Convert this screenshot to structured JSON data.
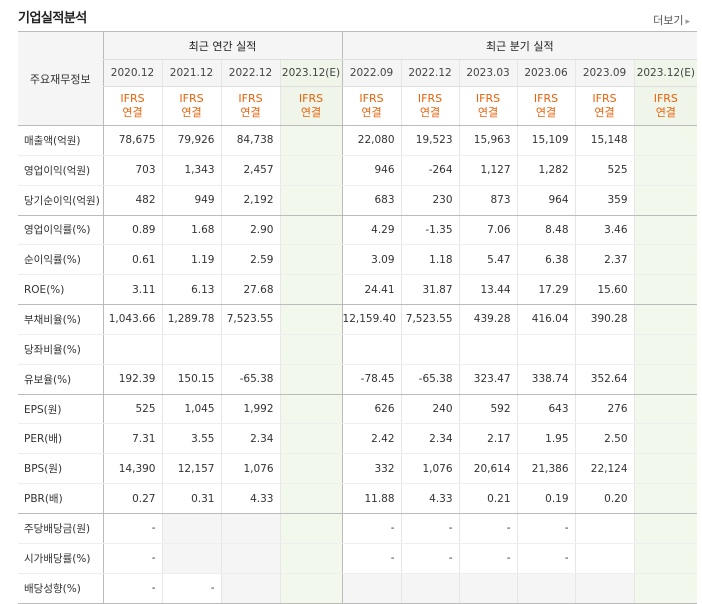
{
  "title": "기업실적분석",
  "more_label": "더보기",
  "header": {
    "corner_label": "주요재무정보",
    "annual_label": "최근 연간 실적",
    "quarter_label": "최근 분기 실적",
    "annual_periods": [
      "2020.12",
      "2021.12",
      "2022.12",
      "2023.12(E)"
    ],
    "quarter_periods": [
      "2022.09",
      "2022.12",
      "2023.03",
      "2023.06",
      "2023.09",
      "2023.12(E)"
    ],
    "basis_top": "IFRS",
    "basis_bottom": "연결"
  },
  "rows": [
    {
      "label": "매출액(억원)",
      "values": [
        "78,675",
        "79,926",
        "84,738",
        "",
        "22,080",
        "19,523",
        "15,963",
        "15,109",
        "15,148",
        ""
      ]
    },
    {
      "label": "영업이익(억원)",
      "values": [
        "703",
        "1,343",
        "2,457",
        "",
        "946",
        "-264",
        "1,127",
        "1,282",
        "525",
        ""
      ]
    },
    {
      "label": "당기순이익(억원)",
      "values": [
        "482",
        "949",
        "2,192",
        "",
        "683",
        "230",
        "873",
        "964",
        "359",
        ""
      ]
    },
    {
      "label": "영업이익률(%)",
      "values": [
        "0.89",
        "1.68",
        "2.90",
        "",
        "4.29",
        "-1.35",
        "7.06",
        "8.48",
        "3.46",
        ""
      ]
    },
    {
      "label": "순이익률(%)",
      "values": [
        "0.61",
        "1.19",
        "2.59",
        "",
        "3.09",
        "1.18",
        "5.47",
        "6.38",
        "2.37",
        ""
      ]
    },
    {
      "label": "ROE(%)",
      "values": [
        "3.11",
        "6.13",
        "27.68",
        "",
        "24.41",
        "31.87",
        "13.44",
        "17.29",
        "15.60",
        ""
      ]
    },
    {
      "label": "부채비율(%)",
      "values": [
        "1,043.66",
        "1,289.78",
        "7,523.55",
        "",
        "12,159.40",
        "7,523.55",
        "439.28",
        "416.04",
        "390.28",
        ""
      ]
    },
    {
      "label": "당좌비율(%)",
      "values": [
        "",
        "",
        "",
        "",
        "",
        "",
        "",
        "",
        "",
        ""
      ]
    },
    {
      "label": "유보율(%)",
      "values": [
        "192.39",
        "150.15",
        "-65.38",
        "",
        "-78.45",
        "-65.38",
        "323.47",
        "338.74",
        "352.64",
        ""
      ]
    },
    {
      "label": "EPS(원)",
      "values": [
        "525",
        "1,045",
        "1,992",
        "",
        "626",
        "240",
        "592",
        "643",
        "276",
        ""
      ]
    },
    {
      "label": "PER(배)",
      "values": [
        "7.31",
        "3.55",
        "2.34",
        "",
        "2.42",
        "2.34",
        "2.17",
        "1.95",
        "2.50",
        ""
      ]
    },
    {
      "label": "BPS(원)",
      "values": [
        "14,390",
        "12,157",
        "1,076",
        "",
        "332",
        "1,076",
        "20,614",
        "21,386",
        "22,124",
        ""
      ]
    },
    {
      "label": "PBR(배)",
      "values": [
        "0.27",
        "0.31",
        "4.33",
        "",
        "11.88",
        "4.33",
        "0.21",
        "0.19",
        "0.20",
        ""
      ]
    },
    {
      "label": "주당배당금(원)",
      "values": [
        "-",
        "",
        "",
        "",
        "-",
        "-",
        "-",
        "-",
        "",
        ""
      ]
    },
    {
      "label": "시가배당률(%)",
      "values": [
        "-",
        "",
        "",
        "",
        "-",
        "-",
        "-",
        "-",
        "",
        ""
      ]
    },
    {
      "label": "배당성향(%)",
      "values": [
        "-",
        "-",
        "",
        "",
        "",
        "",
        "",
        "",
        "",
        ""
      ]
    }
  ],
  "colors": {
    "estimate_bg": "#f3f8ec",
    "negative": "#d92a2a",
    "basis": "#e8620a"
  }
}
